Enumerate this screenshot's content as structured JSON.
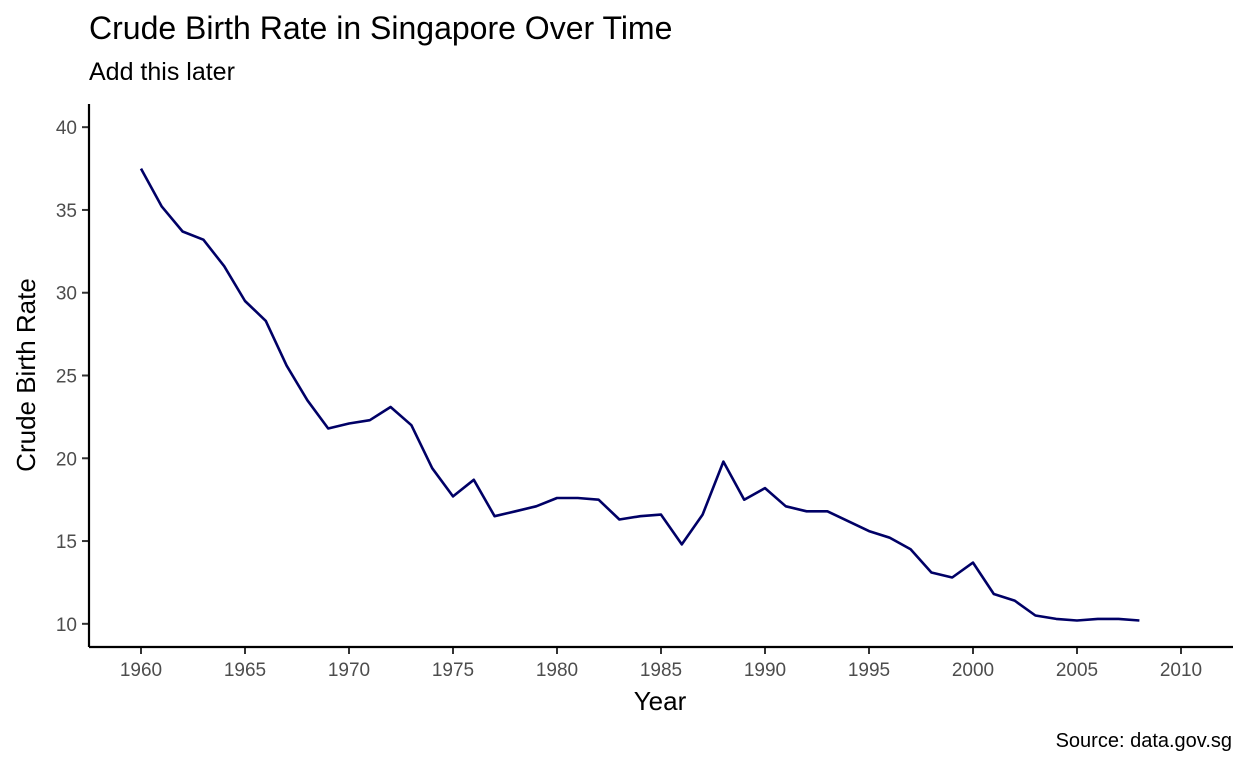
{
  "chart_data": {
    "type": "line",
    "title": "Crude Birth Rate in Singapore Over Time",
    "subtitle": "Add this later",
    "caption": "Source: data.gov.sg",
    "xlabel": "Year",
    "ylabel": "Crude Birth Rate",
    "xlim": [
      1957.5,
      2012.5
    ],
    "ylim": [
      8.6,
      41.4
    ],
    "xticks": [
      1960,
      1965,
      1970,
      1975,
      1980,
      1985,
      1990,
      1995,
      2000,
      2005,
      2010
    ],
    "yticks": [
      10,
      15,
      20,
      25,
      30,
      35,
      40
    ],
    "grid": false,
    "series_color": "#000066",
    "x": [
      1960,
      1961,
      1962,
      1963,
      1964,
      1965,
      1966,
      1967,
      1968,
      1969,
      1970,
      1971,
      1972,
      1973,
      1974,
      1975,
      1976,
      1977,
      1978,
      1979,
      1980,
      1981,
      1982,
      1983,
      1984,
      1985,
      1986,
      1987,
      1988,
      1989,
      1990,
      1991,
      1992,
      1993,
      1994,
      1995,
      1996,
      1997,
      1998,
      1999,
      2000,
      2001,
      2002,
      2003,
      2004,
      2005,
      2006,
      2007,
      2008
    ],
    "y": [
      37.5,
      35.2,
      33.7,
      33.2,
      31.6,
      29.5,
      28.3,
      25.6,
      23.5,
      21.8,
      22.1,
      22.3,
      23.1,
      22.0,
      19.4,
      17.7,
      18.7,
      16.5,
      16.8,
      17.1,
      17.6,
      17.6,
      17.5,
      16.3,
      16.5,
      16.6,
      14.8,
      16.6,
      19.8,
      17.5,
      18.2,
      17.1,
      16.8,
      16.8,
      16.2,
      15.6,
      15.2,
      14.5,
      13.1,
      12.8,
      13.7,
      11.8,
      11.4,
      10.5,
      10.3,
      10.2,
      10.3,
      10.3,
      10.2
    ]
  }
}
